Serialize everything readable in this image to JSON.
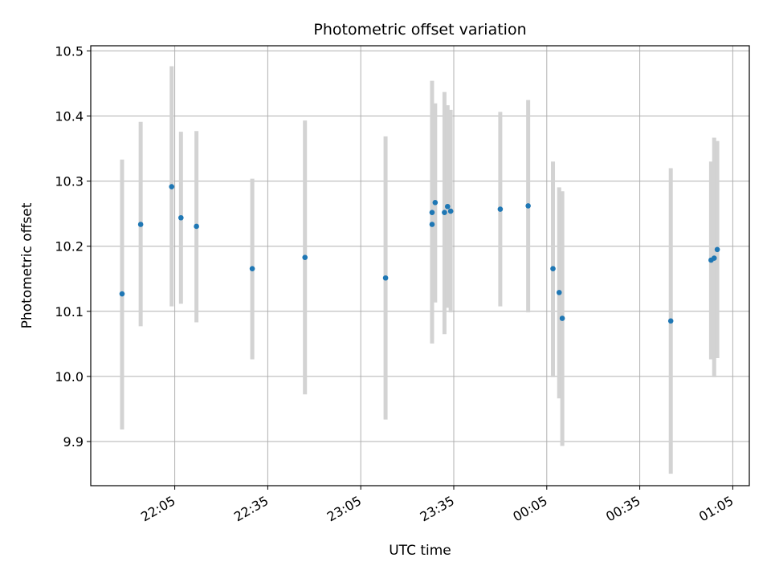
{
  "chart_data": {
    "type": "scatter",
    "title": "Photometric offset variation",
    "xlabel": "UTC time",
    "ylabel": "Photometric offset",
    "x_ticks": [
      "22:05",
      "22:35",
      "23:05",
      "23:35",
      "00:05",
      "00:35",
      "01:05"
    ],
    "y_ticks": [
      "9.9",
      "10.0",
      "10.1",
      "10.2",
      "10.3",
      "10.4",
      "10.5"
    ],
    "x_axis_minutes_per_tick": 30,
    "ylim": [
      9.845,
      10.51
    ],
    "grid": true,
    "colors": {
      "marker": "#1f77b4",
      "errorbar": "#d3d3d3",
      "grid": "#b0b0b0"
    },
    "points": [
      {
        "t": "21:48",
        "y": 10.135,
        "lo": 9.93,
        "hi": 10.338
      },
      {
        "t": "21:54",
        "y": 10.24,
        "lo": 10.086,
        "hi": 10.395
      },
      {
        "t": "22:04",
        "y": 10.297,
        "lo": 10.116,
        "hi": 10.479
      },
      {
        "t": "22:07",
        "y": 10.25,
        "lo": 10.12,
        "hi": 10.38
      },
      {
        "t": "22:12",
        "y": 10.237,
        "lo": 10.092,
        "hi": 10.381
      },
      {
        "t": "22:30",
        "y": 10.173,
        "lo": 10.036,
        "hi": 10.309
      },
      {
        "t": "22:47",
        "y": 10.19,
        "lo": 9.983,
        "hi": 10.397
      },
      {
        "t": "23:13",
        "y": 10.159,
        "lo": 9.945,
        "hi": 10.373
      },
      {
        "t": "23:28",
        "y": 10.24,
        "lo": 10.068,
        "hi": 10.411
      },
      {
        "t": "23:28",
        "y": 10.258,
        "lo": 10.06,
        "hi": 10.457
      },
      {
        "t": "23:29",
        "y": 10.273,
        "lo": 10.122,
        "hi": 10.423
      },
      {
        "t": "23:32",
        "y": 10.258,
        "lo": 10.074,
        "hi": 10.44
      },
      {
        "t": "23:33",
        "y": 10.267,
        "lo": 10.114,
        "hi": 10.42
      },
      {
        "t": "23:34",
        "y": 10.26,
        "lo": 10.107,
        "hi": 10.413
      },
      {
        "t": "23:50",
        "y": 10.263,
        "lo": 10.116,
        "hi": 10.41
      },
      {
        "t": "23:59",
        "y": 10.268,
        "lo": 10.107,
        "hi": 10.428
      },
      {
        "t": "00:07",
        "y": 10.173,
        "lo": 10.009,
        "hi": 10.335
      },
      {
        "t": "00:09",
        "y": 10.137,
        "lo": 9.977,
        "hi": 10.296
      },
      {
        "t": "00:10",
        "y": 10.098,
        "lo": 9.905,
        "hi": 10.29
      },
      {
        "t": "00:45",
        "y": 10.094,
        "lo": 9.863,
        "hi": 10.325
      },
      {
        "t": "00:58",
        "y": 10.186,
        "lo": 10.036,
        "hi": 10.335
      },
      {
        "t": "00:59",
        "y": 10.189,
        "lo": 10.009,
        "hi": 10.371
      },
      {
        "t": "01:00",
        "y": 10.202,
        "lo": 10.038,
        "hi": 10.366
      }
    ]
  }
}
